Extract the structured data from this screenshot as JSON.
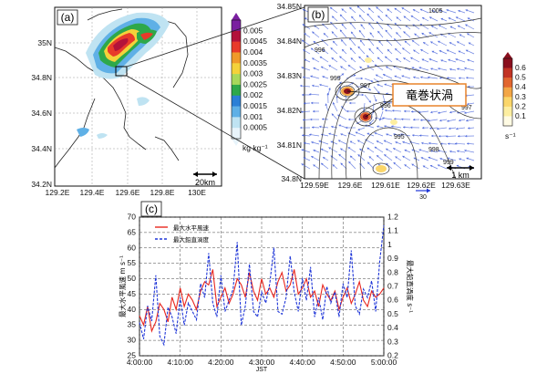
{
  "figure": {
    "panel_a": {
      "label": "(a)",
      "lat_ticks": [
        "35N",
        "34.8N",
        "34.6N",
        "34.4N",
        "34.2N"
      ],
      "lon_ticks": [
        "129.2E",
        "129.4E",
        "129.6E",
        "129.8E",
        "130E"
      ],
      "scale_bar": "20km",
      "colorbar": {
        "unit": "kg kg⁻¹",
        "ticks": [
          "0.005",
          "0.0045",
          "0.004",
          "0.0035",
          "0.003",
          "0.0025",
          "0.002",
          "0.0015",
          "0.001",
          "0.0005"
        ],
        "colors": [
          "#e8f4fb",
          "#bfe3f2",
          "#5fb0e6",
          "#2b7fd6",
          "#2ea84a",
          "#a8d85b",
          "#f4d23a",
          "#f09a2a",
          "#e83a2a",
          "#b3123a",
          "#7a1fa0"
        ]
      }
    },
    "panel_b": {
      "label": "(b)",
      "lat_ticks": [
        "34.85N",
        "34.84N",
        "34.83N",
        "34.82N",
        "34.81N",
        "34.8N"
      ],
      "lon_ticks": [
        "129.59E",
        "129.6E",
        "129.61E",
        "129.62E",
        "129.63E"
      ],
      "vector_scale_label": "30",
      "scale_bar": "1 km",
      "annotation": "竜巻状渦",
      "contour_labels": [
        "1005",
        "996",
        "999",
        "997",
        "996",
        "995",
        "998",
        "999",
        "997"
      ],
      "colorbar": {
        "unit": "s⁻¹",
        "ticks": [
          "0.6",
          "0.5",
          "0.4",
          "0.3",
          "0.2",
          "0.1"
        ],
        "colors": [
          "#fffbe3",
          "#fdeea0",
          "#fbd66a",
          "#f3a646",
          "#e2662f",
          "#c23324",
          "#8a0f1e"
        ]
      }
    },
    "panel_c": {
      "label": "(c)",
      "legend": [
        "最大水平風速",
        "最大鉛直渦度"
      ],
      "y_left_label": "最大水平風速 m s⁻¹",
      "y_right_label": "最大鉛直渦度 s⁻¹",
      "x_label": "JST",
      "x_ticks": [
        "4:00:00",
        "4:10:00",
        "4:20:00",
        "4:30:00",
        "4:40:00",
        "4:50:00",
        "5:00:00"
      ],
      "y_left_ticks": [
        "70",
        "65",
        "60",
        "55",
        "50",
        "45",
        "40",
        "35",
        "30",
        "25"
      ],
      "y_right_ticks": [
        "1.2",
        "1.1",
        "1",
        "0.9",
        "0.8",
        "0.7",
        "0.6",
        "0.5",
        "0.4",
        "0.3",
        "0.2"
      ]
    }
  },
  "chart_data": {
    "type": "line",
    "xlabel": "JST",
    "ylabel": "最大水平風速 m s⁻¹",
    "y2label": "最大鉛直渦度 s⁻¹",
    "xlim": [
      0,
      60
    ],
    "ylim": [
      25,
      70
    ],
    "y2lim": [
      0.2,
      1.2
    ],
    "x_tick_labels": [
      "4:00:00",
      "4:10:00",
      "4:20:00",
      "4:30:00",
      "4:40:00",
      "4:50:00",
      "5:00:00"
    ],
    "grid": true,
    "legend_position": "top-left",
    "series": [
      {
        "name": "最大水平風速",
        "axis": "left",
        "color": "#e8261e",
        "style": "solid",
        "x": [
          0,
          1,
          2,
          3,
          4,
          5,
          6,
          7,
          8,
          9,
          10,
          11,
          12,
          13,
          14,
          15,
          16,
          17,
          18,
          19,
          20,
          21,
          22,
          23,
          24,
          25,
          26,
          27,
          28,
          29,
          30,
          31,
          32,
          33,
          34,
          35,
          36,
          37,
          38,
          39,
          40,
          41,
          42,
          43,
          44,
          45,
          46,
          47,
          48,
          49,
          50,
          51,
          52,
          53,
          54,
          55,
          56,
          57,
          58,
          59,
          60
        ],
        "values": [
          38,
          35,
          41,
          33,
          36,
          42,
          40,
          36,
          44,
          40,
          47,
          41,
          45,
          43,
          40,
          46,
          49,
          48,
          53,
          41,
          44,
          47,
          42,
          45,
          50,
          48,
          44,
          52,
          46,
          43,
          50,
          45,
          47,
          44,
          49,
          52,
          46,
          48,
          53,
          45,
          47,
          50,
          44,
          46,
          41,
          48,
          45,
          43,
          46,
          40,
          44,
          47,
          42,
          45,
          49,
          43,
          41,
          46,
          44,
          45,
          47
        ]
      },
      {
        "name": "最大鉛直渦度",
        "axis": "right",
        "color": "#1f36d8",
        "style": "dashed",
        "x": [
          0,
          1,
          2,
          3,
          4,
          5,
          6,
          7,
          8,
          9,
          10,
          11,
          12,
          13,
          14,
          15,
          16,
          17,
          18,
          19,
          20,
          21,
          22,
          23,
          24,
          25,
          26,
          27,
          28,
          29,
          30,
          31,
          32,
          33,
          34,
          35,
          36,
          37,
          38,
          39,
          40,
          41,
          42,
          43,
          44,
          45,
          46,
          47,
          48,
          49,
          50,
          51,
          52,
          53,
          54,
          55,
          56,
          57,
          58,
          59,
          60
        ],
        "values": [
          0.44,
          0.32,
          0.56,
          0.45,
          0.78,
          0.34,
          0.28,
          0.55,
          0.48,
          0.36,
          0.62,
          0.42,
          0.58,
          0.52,
          0.46,
          0.72,
          0.62,
          0.94,
          0.58,
          0.48,
          0.78,
          0.52,
          0.6,
          0.68,
          1.02,
          0.42,
          0.56,
          0.86,
          0.52,
          0.48,
          0.66,
          0.58,
          0.72,
          0.98,
          0.52,
          0.5,
          0.62,
          0.92,
          0.66,
          0.52,
          0.76,
          0.6,
          0.84,
          0.48,
          0.62,
          0.46,
          0.7,
          0.58,
          0.66,
          0.48,
          0.72,
          0.62,
          0.96,
          0.56,
          0.5,
          0.68,
          0.62,
          0.74,
          0.52,
          0.88,
          1.14
        ]
      }
    ]
  }
}
